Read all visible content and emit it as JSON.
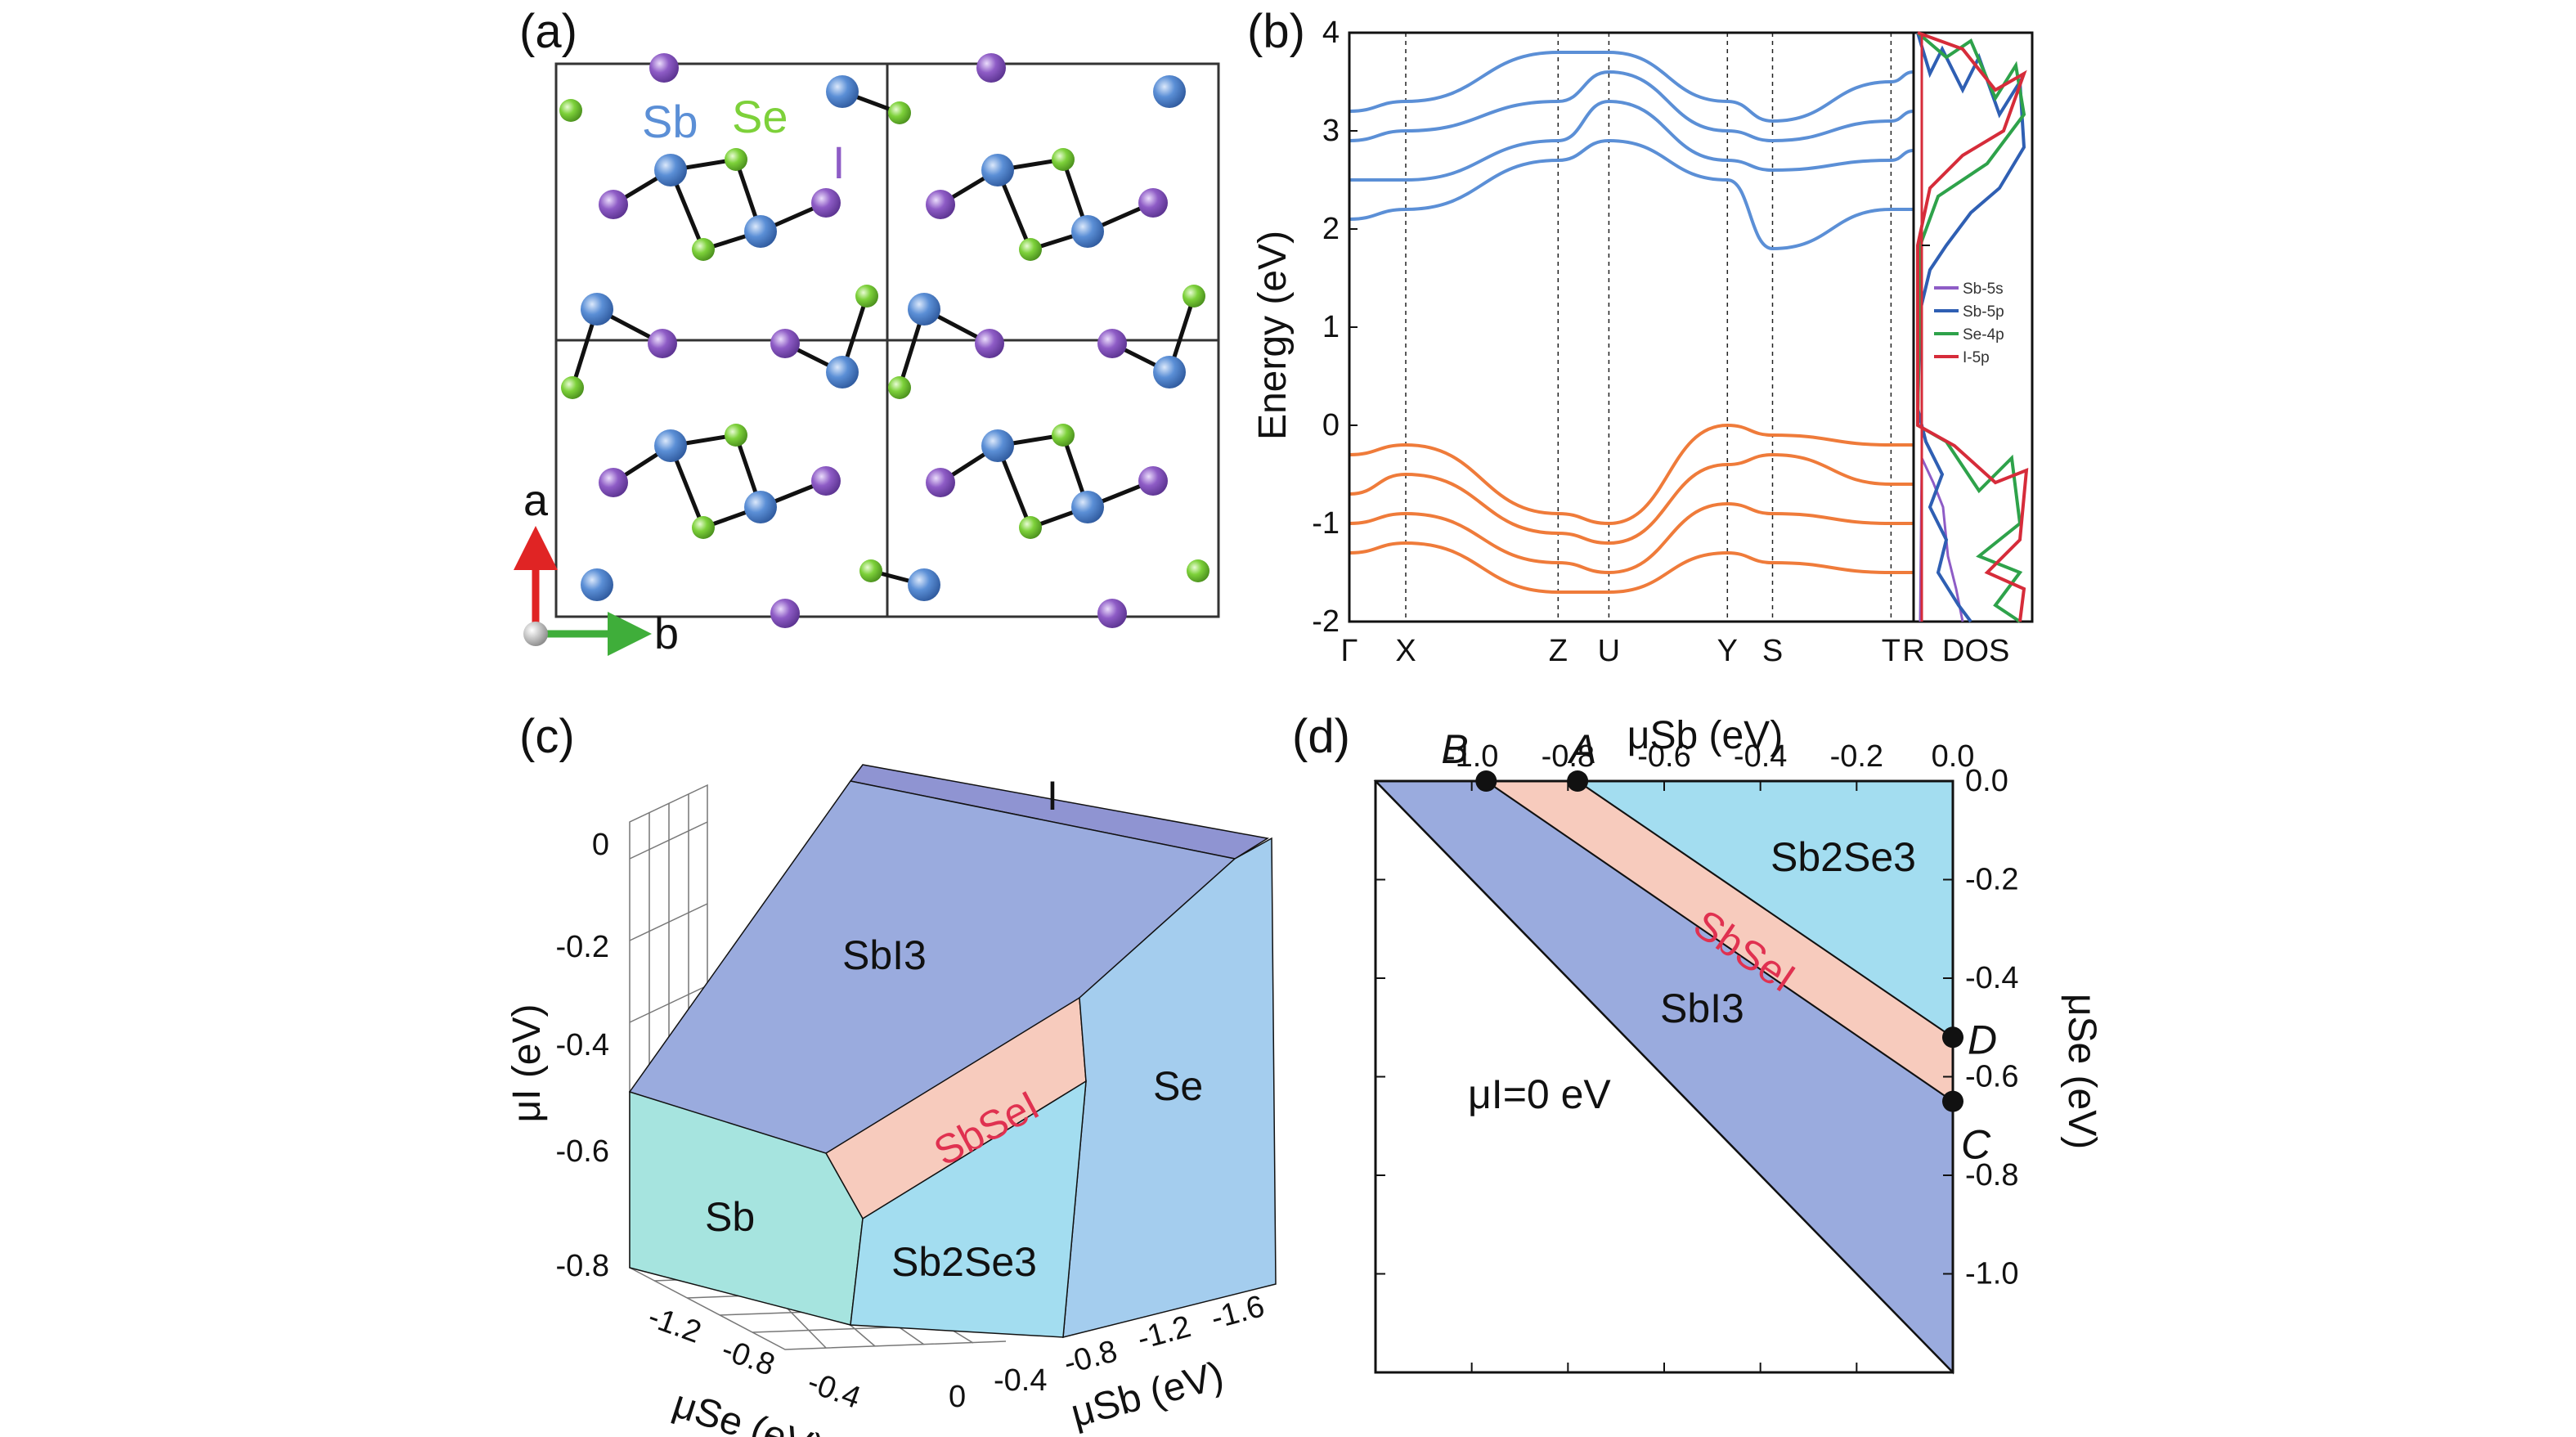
{
  "panels": {
    "a": {
      "label": "(a)",
      "elements": {
        "sb": "Sb",
        "se": "Se",
        "i": "I"
      },
      "axes": {
        "a": "a",
        "b": "b"
      },
      "colors": {
        "sb": "#5b8fd6",
        "se": "#7dd13a",
        "i": "#8e5cc6"
      }
    },
    "b": {
      "label": "(b)",
      "ylabel": "Energy (eV)",
      "kpoints": [
        "Γ",
        "X",
        "Z",
        "U",
        "Y",
        "S",
        "T",
        "R"
      ],
      "dos_label": "DOS",
      "legend": [
        "Sb-5s",
        "Sb-5p",
        "Se-4p",
        "I-5p"
      ],
      "colors": {
        "conduction": "#5b8fd6",
        "valence": "#ef7b3a",
        "sb5s": "#8e5cc6",
        "sb5p": "#2f5fb3",
        "se4p": "#2ea24a",
        "i5p": "#d62c3a"
      }
    },
    "c": {
      "label": "(c)",
      "zlabel": "μI (eV)",
      "xlabel": "μSe (eV)",
      "ylabel": "μSb (eV)",
      "regions": {
        "sbi3": "SbI3",
        "i": "I",
        "sbsei": "SbSeI",
        "se": "Se",
        "sb": "Sb",
        "sb2se3": "Sb2Se3"
      }
    },
    "d": {
      "label": "(d)",
      "xlabel": "μSb (eV)",
      "ylabel": "μSe (eV)",
      "regions": {
        "sb2se3": "Sb2Se3",
        "sbsei": "SbSeI",
        "sbi3": "SbI3",
        "mu_i0": "μI=0 eV"
      },
      "points": [
        "A",
        "B",
        "C",
        "D"
      ]
    }
  },
  "chart_data": [
    {
      "type": "line",
      "panel": "b",
      "ylabel": "Energy (eV)",
      "ylim": [
        -2,
        4
      ],
      "yticks": [
        "-2",
        "-1",
        "0",
        "1",
        "2",
        "3",
        "4"
      ],
      "x": [
        "Γ",
        "X",
        "Z",
        "U",
        "Y",
        "S",
        "T",
        "R"
      ],
      "series": [
        {
          "values": [
            2.1,
            2.2,
            2.7,
            2.9,
            2.5,
            1.8,
            2.2,
            2.2
          ]
        },
        {
          "values": [
            2.5,
            2.5,
            2.9,
            3.3,
            2.7,
            2.6,
            2.7,
            2.8
          ]
        },
        {
          "values": [
            2.9,
            3.0,
            3.3,
            3.6,
            3.0,
            2.9,
            3.1,
            3.2
          ]
        },
        {
          "values": [
            3.2,
            3.3,
            3.8,
            3.8,
            3.3,
            3.1,
            3.5,
            3.6
          ]
        },
        {
          "values": [
            -0.3,
            -0.2,
            -0.9,
            -1.0,
            0.0,
            -0.1,
            -0.2,
            -0.2
          ]
        },
        {
          "values": [
            -0.7,
            -0.5,
            -1.1,
            -1.2,
            -0.4,
            -0.3,
            -0.6,
            -0.6
          ]
        },
        {
          "values": [
            -1.0,
            -0.9,
            -1.4,
            -1.5,
            -0.8,
            -0.9,
            -1.0,
            -1.0
          ]
        },
        {
          "values": [
            -1.3,
            -1.2,
            -1.7,
            -1.7,
            -1.3,
            -1.4,
            -1.5,
            -1.5
          ]
        }
      ]
    },
    {
      "type": "area",
      "panel": "d",
      "xlabel": "μSb (eV)",
      "ylabel": "μSe (eV)",
      "xlim": [
        -1.2,
        0
      ],
      "ylim": [
        -1.2,
        0
      ],
      "xticks": [
        "-1.0",
        "-0.8",
        "-0.6",
        "-0.4",
        "-0.2",
        "0.0"
      ],
      "yticks": [
        "0.0",
        "-0.2",
        "-0.4",
        "-0.6",
        "-0.8",
        "-1.0"
      ],
      "points": [
        {
          "name": "B",
          "x": -0.97,
          "y": 0.0
        },
        {
          "name": "A",
          "x": -0.78,
          "y": 0.0
        },
        {
          "name": "D",
          "x": 0.0,
          "y": -0.52
        },
        {
          "name": "C",
          "x": 0.0,
          "y": -0.65
        }
      ]
    }
  ]
}
